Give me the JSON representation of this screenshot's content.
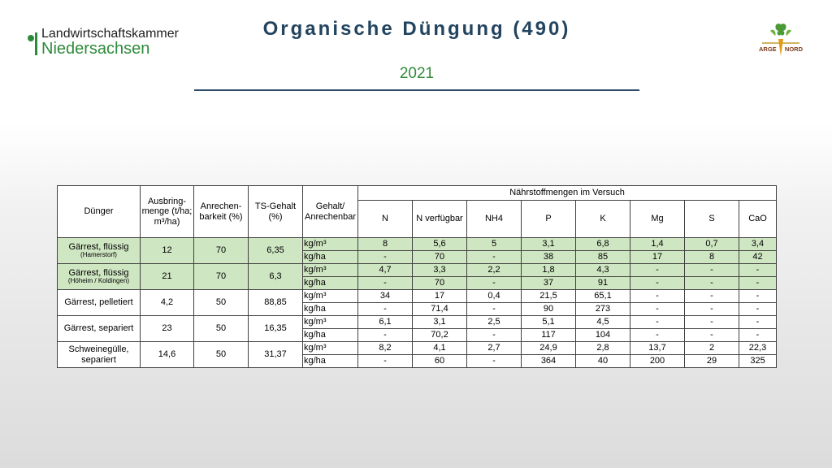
{
  "logo_left": {
    "line1": "Landwirtschaftskammer",
    "line2": "Niedersachsen",
    "brand_color": "#2c8b3a"
  },
  "logo_right": {
    "left_word": "ARGE",
    "right_word": "NORD"
  },
  "title": "Organische Düngung (490)",
  "subtitle": "2021",
  "table": {
    "group_header": "Nährstoffmengen im Versuch",
    "headers": {
      "duenger": "Dünger",
      "ausbring": "Ausbring-menge (t/ha; m³/ha)",
      "anrechen": "Anrechen-barkeit (%)",
      "ts": "TS-Gehalt (%)",
      "gehalt": "Gehalt/ Anrechenbar",
      "nutrients": [
        "N",
        "N verfügbar",
        "NH4",
        "P",
        "K",
        "Mg",
        "S",
        "CaO"
      ]
    },
    "rows": [
      {
        "name": "Gärrest, flüssig",
        "sub": "(Hamerstorf)",
        "ausbring": "12",
        "anrechen": "70",
        "ts": "6,35",
        "green": true,
        "lines": [
          {
            "unit": "kg/m³",
            "values": [
              "8",
              "5,6",
              "5",
              "3,1",
              "6,8",
              "1,4",
              "0,7",
              "3,4"
            ]
          },
          {
            "unit": "kg/ha",
            "values": [
              "-",
              "70",
              "-",
              "38",
              "85",
              "17",
              "8",
              "42"
            ]
          }
        ]
      },
      {
        "name": "Gärrest, flüssig",
        "sub": "(Höheim / Koldingen)",
        "ausbring": "21",
        "anrechen": "70",
        "ts": "6,3",
        "green": true,
        "lines": [
          {
            "unit": "kg/m³",
            "values": [
              "4,7",
              "3,3",
              "2,2",
              "1,8",
              "4,3",
              "-",
              "-",
              "-"
            ]
          },
          {
            "unit": "kg/ha",
            "values": [
              "-",
              "70",
              "-",
              "37",
              "91",
              "-",
              "-",
              "-"
            ]
          }
        ]
      },
      {
        "name": "Gärrest, pelletiert",
        "sub": "",
        "ausbring": "4,2",
        "anrechen": "50",
        "ts": "88,85",
        "green": false,
        "lines": [
          {
            "unit": "kg/m³",
            "values": [
              "34",
              "17",
              "0,4",
              "21,5",
              "65,1",
              "-",
              "-",
              "-"
            ]
          },
          {
            "unit": "kg/ha",
            "values": [
              "-",
              "71,4",
              "-",
              "90",
              "273",
              "-",
              "-",
              "-"
            ]
          }
        ]
      },
      {
        "name": "Gärrest, separiert",
        "sub": "",
        "ausbring": "23",
        "anrechen": "50",
        "ts": "16,35",
        "green": false,
        "lines": [
          {
            "unit": "kg/m³",
            "values": [
              "6,1",
              "3,1",
              "2,5",
              "5,1",
              "4,5",
              "-",
              "-",
              "-"
            ]
          },
          {
            "unit": "kg/ha",
            "values": [
              "-",
              "70,2",
              "-",
              "117",
              "104",
              "-",
              "-",
              "-"
            ]
          }
        ]
      },
      {
        "name": "Schweinegülle, separiert",
        "sub": "",
        "ausbring": "14,6",
        "anrechen": "50",
        "ts": "31,37",
        "green": false,
        "lines": [
          {
            "unit": "kg/m³",
            "values": [
              "8,2",
              "4,1",
              "2,7",
              "24,9",
              "2,8",
              "13,7",
              "2",
              "22,3"
            ]
          },
          {
            "unit": "kg/ha",
            "values": [
              "-",
              "60",
              "-",
              "364",
              "40",
              "200",
              "29",
              "325"
            ]
          }
        ]
      }
    ]
  }
}
